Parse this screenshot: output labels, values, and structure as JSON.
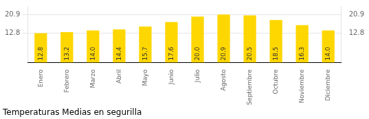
{
  "chart_data": {
    "type": "bar",
    "title": "Temperaturas Medias en segurilla",
    "categories": [
      "Enero",
      "Febrero",
      "Marzo",
      "Abril",
      "Mayo",
      "Junio",
      "Julio",
      "Agosto",
      "Septiembre",
      "Octubre",
      "Noviembre",
      "Diciembre"
    ],
    "values": [
      12.8,
      13.2,
      14.0,
      14.4,
      15.7,
      17.6,
      20.0,
      20.9,
      20.5,
      18.5,
      16.3,
      14.0
    ],
    "value_labels": [
      "12.8",
      "13.2",
      "14.0",
      "14.4",
      "15.7",
      "17.6",
      "20.0",
      "20.9",
      "20.5",
      "18.5",
      "16.3",
      "14.0"
    ],
    "data_labels": true,
    "color": "#FFD700",
    "ylim": [
      0.0,
      24.5
    ],
    "yticks": [
      12.8,
      20.9
    ],
    "y2lim": [
      0.0,
      24.5
    ],
    "y2ticks": [
      12.8,
      20.9
    ],
    "grid": true
  }
}
